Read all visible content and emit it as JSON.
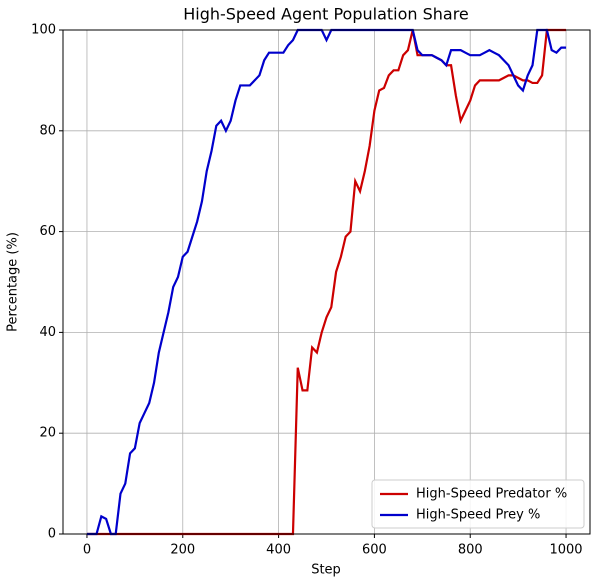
{
  "chart_data": {
    "type": "line",
    "title": "High-Speed Agent Population Share",
    "x_label": "Step",
    "y_label": "Percentage (%)",
    "x": [
      0,
      10,
      20,
      30,
      40,
      50,
      60,
      70,
      80,
      90,
      100,
      110,
      120,
      130,
      140,
      150,
      160,
      170,
      180,
      190,
      200,
      210,
      220,
      230,
      240,
      250,
      260,
      270,
      280,
      290,
      300,
      310,
      320,
      330,
      340,
      350,
      360,
      370,
      380,
      390,
      400,
      410,
      420,
      430,
      440,
      450,
      460,
      470,
      480,
      490,
      500,
      510,
      520,
      530,
      540,
      550,
      560,
      570,
      580,
      590,
      600,
      610,
      620,
      630,
      640,
      650,
      660,
      670,
      680,
      690,
      700,
      710,
      720,
      730,
      740,
      750,
      760,
      770,
      780,
      790,
      800,
      810,
      820,
      830,
      840,
      850,
      860,
      870,
      880,
      890,
      900,
      910,
      920,
      930,
      940,
      950,
      960,
      970,
      980,
      990,
      1000
    ],
    "series": [
      {
        "name": "High-Speed Predator %",
        "color": "#cc0000",
        "values": [
          0,
          0,
          0,
          0,
          0,
          0,
          0,
          0,
          0,
          0,
          0,
          0,
          0,
          0,
          0,
          0,
          0,
          0,
          0,
          0,
          0,
          0,
          0,
          0,
          0,
          0,
          0,
          0,
          0,
          0,
          0,
          0,
          0,
          0,
          0,
          0,
          0,
          0,
          0,
          0,
          0,
          0,
          0,
          0,
          33,
          28.5,
          28.5,
          37,
          36,
          40,
          43,
          45,
          52,
          55,
          59,
          60,
          70,
          68,
          72,
          77,
          84,
          88,
          88.5,
          91,
          92,
          92,
          95,
          96,
          100,
          95,
          95,
          95,
          95,
          94.5,
          94,
          93,
          93,
          87,
          82,
          84,
          86,
          89,
          90,
          90,
          90,
          90,
          90,
          90.5,
          91,
          91,
          90.5,
          90,
          90,
          89.5,
          89.5,
          91,
          100,
          100,
          100,
          100,
          100
        ]
      },
      {
        "name": "High-Speed Prey %",
        "color": "#0000cc",
        "values": [
          0,
          0,
          0,
          3.5,
          3,
          0,
          0,
          8,
          10,
          16,
          17,
          22,
          24,
          26,
          30,
          36,
          40,
          44,
          49,
          51,
          55,
          56,
          59,
          62,
          66,
          72,
          76,
          81,
          82,
          80,
          82,
          86,
          89,
          89,
          89,
          90,
          91,
          94,
          95.5,
          95.5,
          95.5,
          95.5,
          97,
          98,
          100,
          100,
          100,
          100,
          100,
          100,
          98,
          100,
          100,
          100,
          100,
          100,
          100,
          100,
          100,
          100,
          100,
          100,
          100,
          100,
          100,
          100,
          100,
          100,
          100,
          96,
          95,
          95,
          95,
          94.5,
          94,
          93,
          96,
          96,
          96,
          95.5,
          95,
          95,
          95,
          95.5,
          96,
          95.5,
          95,
          94,
          93,
          91,
          89,
          88,
          91,
          93,
          100,
          100,
          100,
          96,
          95.5,
          96.5,
          96.5
        ]
      }
    ],
    "xlim": [
      -50,
      1050
    ],
    "xticks": [
      0,
      200,
      400,
      600,
      800,
      1000
    ],
    "ylim": [
      0,
      100
    ],
    "yticks": [
      0,
      20,
      40,
      60,
      80,
      100
    ],
    "grid": true,
    "legend": "lower right"
  }
}
